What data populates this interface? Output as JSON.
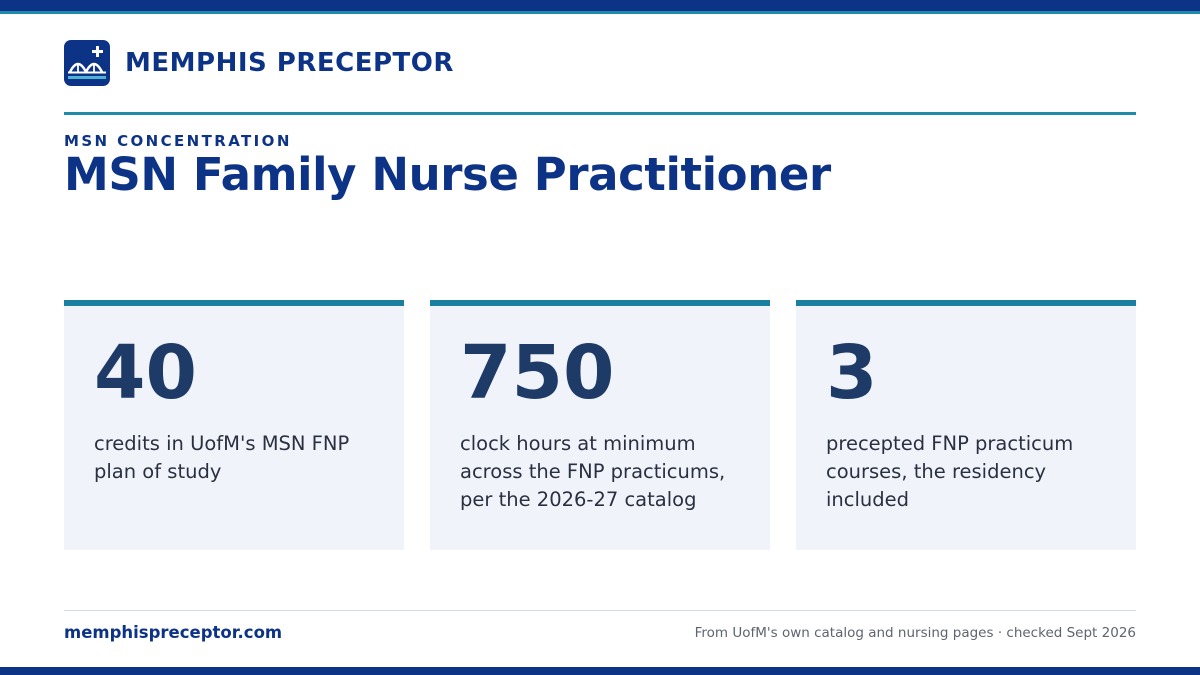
{
  "brand": {
    "name": "MEMPHIS PRECEPTOR",
    "logo_icon": "bridge-plus-icon"
  },
  "header": {
    "eyebrow": "MSN CONCENTRATION",
    "title": "MSN Family Nurse Practitioner"
  },
  "stats": [
    {
      "value": "40",
      "description": "credits in UofM's MSN FNP plan of study"
    },
    {
      "value": "750",
      "description": "clock hours at minimum across the FNP practicums, per the 2026-27 catalog"
    },
    {
      "value": "3",
      "description": "precepted FNP practicum courses, the residency included"
    }
  ],
  "footer": {
    "site": "memphispreceptor.com",
    "note": "From UofM's own catalog and nursing pages · checked Sept 2026"
  },
  "colors": {
    "navy": "#0d3386",
    "teal": "#1f8aaa",
    "card_bg": "#f0f4fa",
    "stat_number": "#1e3a66"
  }
}
